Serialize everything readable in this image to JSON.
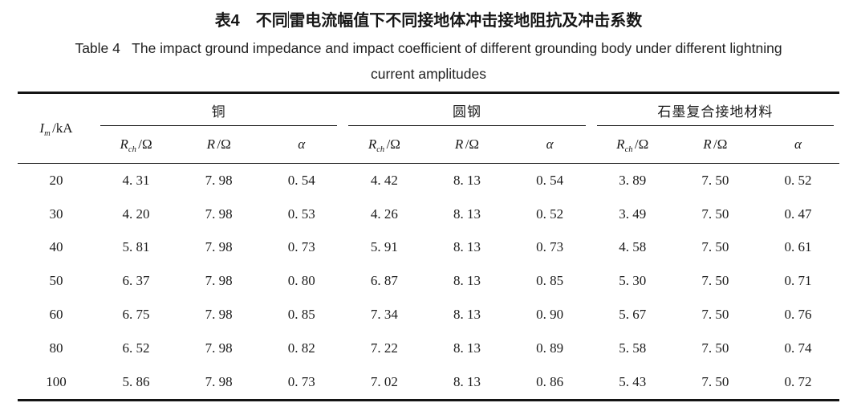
{
  "captions": {
    "zh_part1": "表4　不同",
    "zh_part2": "雷电流幅值下不同接地体冲击接地阻抗及冲击系数",
    "en_line1": "Table 4   The impact ground impedance and impact coefficient of different grounding body under different lightning",
    "en_line2": "current amplitudes"
  },
  "table": {
    "im_header": {
      "sym": "I",
      "sub": "m",
      "unit": "/kA"
    },
    "groups": [
      {
        "label": "铜"
      },
      {
        "label": "圆钢"
      },
      {
        "label": "石墨复合接地材料"
      }
    ],
    "sub_columns": {
      "rch": {
        "sym": "R",
        "sub": "ch",
        "unit": "/Ω"
      },
      "r": {
        "sym": "R",
        "unit": "/Ω"
      },
      "alpha": {
        "sym": "α"
      }
    },
    "rows": [
      {
        "im": "20",
        "cells": [
          "4. 31",
          "7. 98",
          "0. 54",
          "4. 42",
          "8. 13",
          "0. 54",
          "3. 89",
          "7. 50",
          "0. 52"
        ]
      },
      {
        "im": "30",
        "cells": [
          "4. 20",
          "7. 98",
          "0. 53",
          "4. 26",
          "8. 13",
          "0. 52",
          "3. 49",
          "7. 50",
          "0. 47"
        ]
      },
      {
        "im": "40",
        "cells": [
          "5. 81",
          "7. 98",
          "0. 73",
          "5. 91",
          "8. 13",
          "0. 73",
          "4. 58",
          "7. 50",
          "0. 61"
        ]
      },
      {
        "im": "50",
        "cells": [
          "6. 37",
          "7. 98",
          "0. 80",
          "6. 87",
          "8. 13",
          "0. 85",
          "5. 30",
          "7. 50",
          "0. 71"
        ]
      },
      {
        "im": "60",
        "cells": [
          "6. 75",
          "7. 98",
          "0. 85",
          "7. 34",
          "8. 13",
          "0. 90",
          "5. 67",
          "7. 50",
          "0. 76"
        ]
      },
      {
        "im": "80",
        "cells": [
          "6. 52",
          "7. 98",
          "0. 82",
          "7. 22",
          "8. 13",
          "0. 89",
          "5. 58",
          "7. 50",
          "0. 74"
        ]
      },
      {
        "im": "100",
        "cells": [
          "5. 86",
          "7. 98",
          "0. 73",
          "7. 02",
          "8. 13",
          "0. 86",
          "5. 43",
          "7. 50",
          "0. 72"
        ]
      }
    ]
  },
  "chart_data": {
    "type": "table",
    "title": "表4 不同雷电流幅值下不同接地体冲击接地阻抗及冲击系数 (Table 4 The impact ground impedance and impact coefficient of different grounding body under different lightning current amplitudes)",
    "column_groups": [
      "铜",
      "圆钢",
      "石墨复合接地材料"
    ],
    "columns": [
      "Im/kA",
      "铜 Rch/Ω",
      "铜 R/Ω",
      "铜 α",
      "圆钢 Rch/Ω",
      "圆钢 R/Ω",
      "圆钢 α",
      "石墨复合接地材料 Rch/Ω",
      "石墨复合接地材料 R/Ω",
      "石墨复合接地材料 α"
    ],
    "rows": [
      [
        20,
        4.31,
        7.98,
        0.54,
        4.42,
        8.13,
        0.54,
        3.89,
        7.5,
        0.52
      ],
      [
        30,
        4.2,
        7.98,
        0.53,
        4.26,
        8.13,
        0.52,
        3.49,
        7.5,
        0.47
      ],
      [
        40,
        5.81,
        7.98,
        0.73,
        5.91,
        8.13,
        0.73,
        4.58,
        7.5,
        0.61
      ],
      [
        50,
        6.37,
        7.98,
        0.8,
        6.87,
        8.13,
        0.85,
        5.3,
        7.5,
        0.71
      ],
      [
        60,
        6.75,
        7.98,
        0.85,
        7.34,
        8.13,
        0.9,
        5.67,
        7.5,
        0.76
      ],
      [
        80,
        6.52,
        7.98,
        0.82,
        7.22,
        8.13,
        0.89,
        5.58,
        7.5,
        0.74
      ],
      [
        100,
        5.86,
        7.98,
        0.73,
        7.02,
        8.13,
        0.86,
        5.43,
        7.5,
        0.72
      ]
    ]
  }
}
